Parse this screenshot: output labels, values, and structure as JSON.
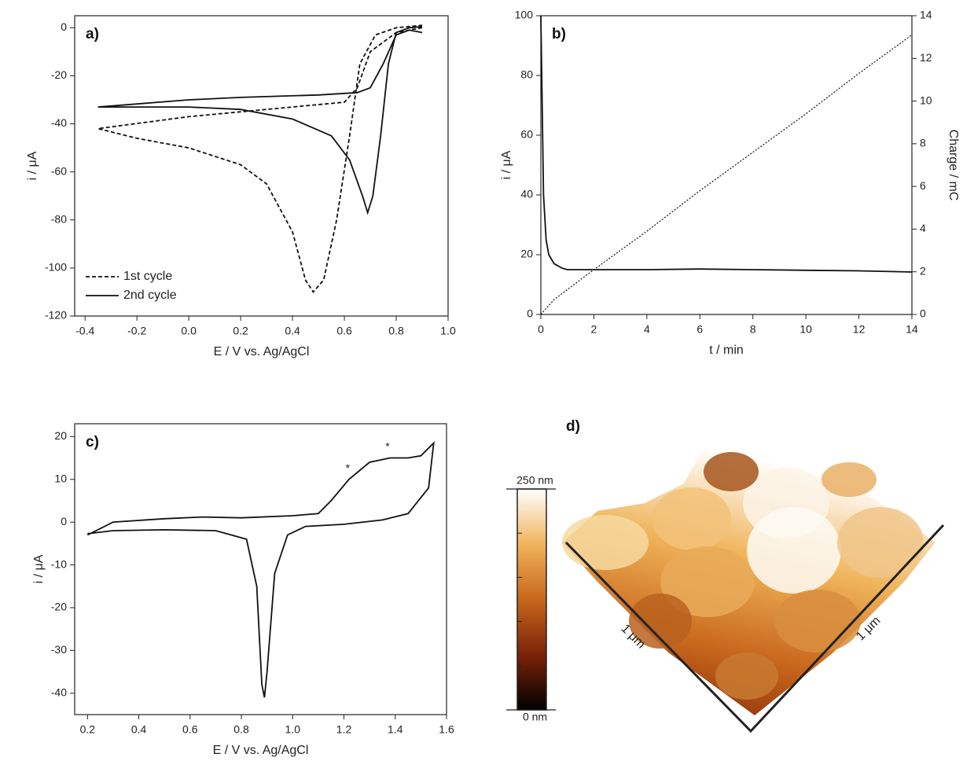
{
  "chart_data": [
    {
      "type": "line",
      "title": "a)",
      "x_label": "E / V vs. Ag/AgCl",
      "y_label": "i / μA",
      "xlim": [
        -0.44,
        1.0
      ],
      "ylim": [
        -120,
        5
      ],
      "xticks": [
        -0.4,
        -0.2,
        {
          "value": 0,
          "label": "0.0"
        },
        0.2,
        0.4,
        0.6,
        0.8,
        {
          "value": 1,
          "label": "1.0"
        }
      ],
      "yticks": [
        -120,
        -100,
        -80,
        -60,
        -40,
        -20,
        0
      ],
      "legend": "lower left",
      "series": [
        {
          "name": "1st cycle",
          "color": "#111111",
          "dash": "dashed",
          "x": [
            0.9,
            0.8,
            0.7,
            0.65,
            0.6,
            0.4,
            0,
            -0.35,
            -0.2,
            0,
            0.2,
            0.3,
            0.4,
            0.45,
            0.48,
            0.52,
            0.57,
            0.62,
            0.66,
            0.72,
            0.8,
            0.9
          ],
          "values": [
            0,
            -2,
            -10,
            -25,
            -31,
            -33,
            -37,
            -42,
            -46,
            -50,
            -57,
            -65,
            -85,
            -105,
            -110,
            -105,
            -80,
            -45,
            -15,
            -3,
            0,
            1
          ]
        },
        {
          "name": "2nd cycle",
          "color": "#111111",
          "dash": "solid",
          "x": [
            0.9,
            0.85,
            0.8,
            0.75,
            0.7,
            0.65,
            0.5,
            0.2,
            0,
            -0.35,
            -0.2,
            0,
            0.2,
            0.4,
            0.55,
            0.62,
            0.67,
            0.69,
            0.71,
            0.74,
            0.77,
            0.8,
            0.85,
            0.9
          ],
          "values": [
            -2,
            -1,
            -3,
            -15,
            -25,
            -27,
            -28,
            -29,
            -30,
            -33,
            -33,
            -33,
            -34,
            -38,
            -45,
            -55,
            -70,
            -77,
            -70,
            -45,
            -15,
            -2,
            0,
            0.5
          ]
        }
      ]
    },
    {
      "type": "line",
      "title": "b)",
      "x_label": "t / min",
      "y_label": "i / μA",
      "y2_label": "Charge / mC",
      "xlim": [
        0,
        14
      ],
      "ylim": [
        0,
        100
      ],
      "y2lim": [
        0,
        14
      ],
      "xticks": [
        0,
        2,
        4,
        6,
        8,
        10,
        12,
        14
      ],
      "yticks": [
        0,
        20,
        40,
        60,
        80,
        100
      ],
      "y2ticks": [
        0,
        2,
        4,
        6,
        8,
        10,
        12,
        14
      ],
      "series": [
        {
          "color": "#111111",
          "dash": "solid",
          "x": [
            0,
            0.05,
            0.1,
            0.2,
            0.3,
            0.5,
            0.8,
            1,
            2,
            4,
            6,
            8,
            10,
            12,
            14
          ],
          "values": [
            100,
            70,
            40,
            25,
            20,
            17,
            15.5,
            15,
            15,
            15,
            15.2,
            15,
            14.8,
            14.6,
            14.2
          ]
        },
        {
          "color": "#111111",
          "dash": "dotted",
          "axis": "y2",
          "x": [
            0,
            0.5,
            2,
            4,
            6,
            8,
            10,
            12,
            14
          ],
          "values": [
            0,
            0.7,
            2.1,
            3.9,
            5.8,
            7.6,
            9.4,
            11.3,
            13.1
          ]
        }
      ]
    },
    {
      "type": "line",
      "title": "c)",
      "x_label": "E / V vs. Ag/AgCl",
      "y_label": "i / μA",
      "xlim": [
        0.15,
        1.6
      ],
      "ylim": [
        -45,
        23
      ],
      "xticks": [
        0.2,
        0.4,
        0.6,
        0.8,
        {
          "value": 1,
          "label": "1.0"
        },
        1.2,
        1.4,
        1.6
      ],
      "yticks": [
        -40,
        -30,
        -20,
        -10,
        0,
        10,
        20
      ],
      "annotations": [
        "*",
        "*"
      ],
      "series": [
        {
          "color": "#111111",
          "dash": "solid",
          "x": [
            0.2,
            0.3,
            0.5,
            0.65,
            0.8,
            1.0,
            1.1,
            1.15,
            1.22,
            1.3,
            1.38,
            1.45,
            1.5,
            1.55,
            1.53,
            1.45,
            1.35,
            1.2,
            1.05,
            0.98,
            0.93,
            0.9,
            0.89,
            0.88,
            0.86,
            0.82,
            0.7,
            0.5,
            0.3,
            0.2
          ],
          "values": [
            -3,
            0,
            0.8,
            1.2,
            1,
            1.5,
            2,
            5,
            10,
            14,
            15,
            15,
            15.5,
            18.5,
            8,
            2,
            0.5,
            -0.5,
            -1,
            -3,
            -12,
            -35,
            -41,
            -38,
            -15,
            -4,
            -2,
            -1.8,
            -2,
            -2.7
          ]
        }
      ]
    },
    {
      "type": "afm",
      "title": "d)",
      "axis_labels": [
        "1 μm",
        "1 μm"
      ],
      "colorbar": {
        "lim": [
          0,
          250
        ],
        "ticks": [
          {
            "value": 0,
            "label": "0 nm"
          },
          {
            "value": 250,
            "label": "250 nm"
          }
        ],
        "minor_ticks": [
          50,
          100,
          150,
          200
        ],
        "colors": [
          "#000000",
          "#7a2308",
          "#c8661c",
          "#f0b45a",
          "#ffffff"
        ]
      }
    }
  ]
}
